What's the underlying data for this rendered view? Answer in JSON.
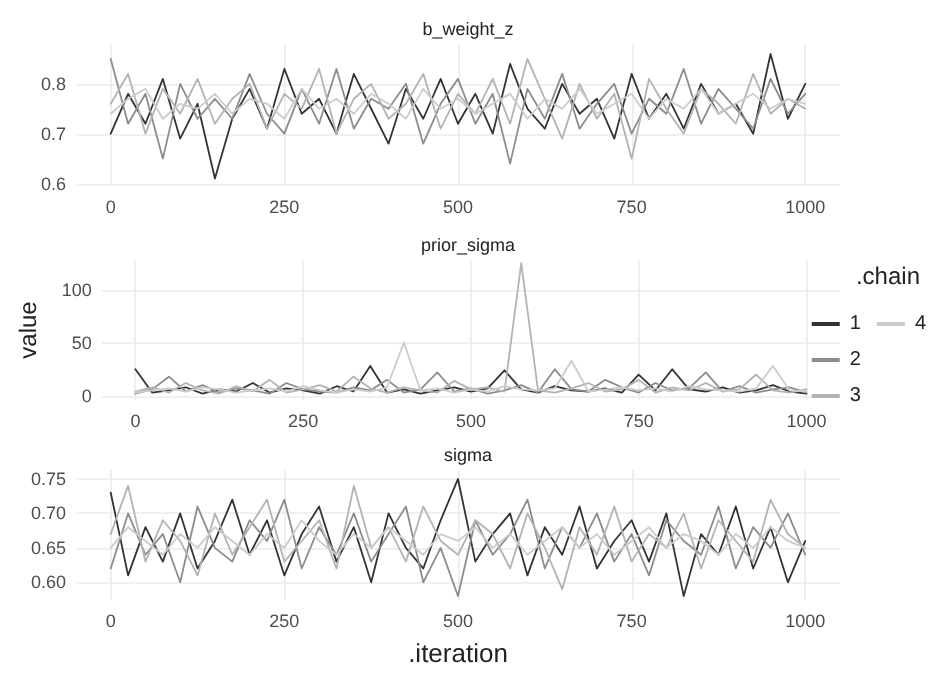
{
  "chart_data": [
    {
      "type": "line",
      "title": "b_weight_z",
      "x": [
        0,
        25,
        50,
        75,
        100,
        125,
        150,
        175,
        200,
        225,
        250,
        275,
        300,
        325,
        350,
        375,
        400,
        425,
        450,
        475,
        500,
        525,
        550,
        575,
        600,
        625,
        650,
        675,
        700,
        725,
        750,
        775,
        800,
        825,
        850,
        875,
        900,
        925,
        950,
        975,
        1000
      ],
      "xlim": [
        -50,
        1050
      ],
      "xticks": [
        0,
        250,
        500,
        750,
        1000
      ],
      "ylim": [
        0.595,
        0.88
      ],
      "yticks": [
        0.6,
        0.7,
        0.8
      ],
      "grid": true,
      "series": [
        {
          "color": "#333333",
          "values": [
            0.7,
            0.78,
            0.72,
            0.81,
            0.69,
            0.76,
            0.61,
            0.73,
            0.79,
            0.71,
            0.83,
            0.74,
            0.77,
            0.7,
            0.82,
            0.75,
            0.68,
            0.79,
            0.73,
            0.81,
            0.72,
            0.78,
            0.7,
            0.84,
            0.75,
            0.71,
            0.8,
            0.74,
            0.77,
            0.69,
            0.82,
            0.73,
            0.78,
            0.71,
            0.8,
            0.74,
            0.76,
            0.7,
            0.86,
            0.73,
            0.8
          ]
        },
        {
          "color": "#8c8c8c",
          "values": [
            0.85,
            0.72,
            0.78,
            0.65,
            0.8,
            0.73,
            0.77,
            0.73,
            0.82,
            0.74,
            0.7,
            0.79,
            0.72,
            0.83,
            0.71,
            0.77,
            0.75,
            0.8,
            0.68,
            0.76,
            0.81,
            0.72,
            0.78,
            0.64,
            0.79,
            0.73,
            0.82,
            0.71,
            0.76,
            0.8,
            0.7,
            0.77,
            0.74,
            0.83,
            0.72,
            0.79,
            0.75,
            0.71,
            0.81,
            0.74,
            0.78
          ]
        },
        {
          "color": "#b3b3b3",
          "values": [
            0.76,
            0.82,
            0.7,
            0.79,
            0.74,
            0.81,
            0.72,
            0.77,
            0.8,
            0.71,
            0.78,
            0.75,
            0.83,
            0.7,
            0.77,
            0.8,
            0.73,
            0.76,
            0.82,
            0.71,
            0.78,
            0.74,
            0.81,
            0.72,
            0.85,
            0.77,
            0.69,
            0.8,
            0.73,
            0.78,
            0.65,
            0.81,
            0.75,
            0.7,
            0.79,
            0.76,
            0.72,
            0.82,
            0.74,
            0.77,
            0.75
          ]
        },
        {
          "color": "#cccccc",
          "values": [
            0.74,
            0.77,
            0.79,
            0.73,
            0.76,
            0.75,
            0.78,
            0.74,
            0.77,
            0.76,
            0.73,
            0.79,
            0.75,
            0.77,
            0.74,
            0.78,
            0.76,
            0.73,
            0.79,
            0.75,
            0.77,
            0.74,
            0.76,
            0.78,
            0.73,
            0.77,
            0.75,
            0.79,
            0.74,
            0.76,
            0.78,
            0.73,
            0.77,
            0.75,
            0.79,
            0.74,
            0.76,
            0.78,
            0.75,
            0.77,
            0.76
          ]
        }
      ]
    },
    {
      "type": "line",
      "title": "prior_sigma",
      "ylabel": "value",
      "legend_title": ".chain",
      "legend": "right",
      "x": [
        0,
        25,
        50,
        75,
        100,
        125,
        150,
        175,
        200,
        225,
        250,
        275,
        300,
        325,
        350,
        375,
        400,
        425,
        450,
        475,
        500,
        525,
        550,
        575,
        600,
        625,
        650,
        675,
        700,
        725,
        750,
        775,
        800,
        825,
        850,
        875,
        900,
        925,
        950,
        975,
        1000
      ],
      "xlim": [
        -50,
        1050
      ],
      "xticks": [
        0,
        250,
        500,
        750,
        1000
      ],
      "ylim": [
        -4,
        128
      ],
      "yticks": [
        0,
        50,
        100
      ],
      "grid": true,
      "series": [
        {
          "name": "1",
          "color": "#333333",
          "values": [
            25,
            3,
            5,
            8,
            2,
            6,
            4,
            12,
            3,
            7,
            5,
            2,
            9,
            4,
            28,
            3,
            6,
            2,
            5,
            8,
            4,
            7,
            24,
            6,
            3,
            9,
            5,
            4,
            7,
            3,
            20,
            5,
            25,
            6,
            4,
            8,
            3,
            5,
            10,
            4,
            2
          ]
        },
        {
          "name": "2",
          "color": "#8c8c8c",
          "values": [
            2,
            6,
            18,
            4,
            10,
            3,
            7,
            5,
            2,
            12,
            6,
            4,
            3,
            8,
            5,
            15,
            3,
            6,
            22,
            4,
            7,
            2,
            5,
            10,
            3,
            25,
            6,
            4,
            15,
            8,
            3,
            12,
            5,
            7,
            22,
            4,
            9,
            3,
            6,
            8,
            3
          ]
        },
        {
          "name": "3",
          "color": "#b3b3b3",
          "values": [
            4,
            8,
            3,
            12,
            5,
            2,
            9,
            4,
            15,
            3,
            6,
            10,
            4,
            18,
            7,
            3,
            8,
            5,
            3,
            14,
            6,
            8,
            4,
            125,
            5,
            3,
            7,
            12,
            4,
            6,
            15,
            3,
            8,
            5,
            12,
            4,
            6,
            20,
            5,
            3,
            6
          ]
        },
        {
          "name": "4",
          "color": "#cccccc",
          "values": [
            3,
            5,
            7,
            4,
            8,
            6,
            3,
            5,
            7,
            4,
            9,
            5,
            3,
            6,
            4,
            8,
            50,
            5,
            7,
            3,
            6,
            4,
            9,
            6,
            5,
            7,
            33,
            4,
            6,
            8,
            5,
            7,
            4,
            9,
            6,
            5,
            4,
            7,
            28,
            5,
            4
          ]
        }
      ]
    },
    {
      "type": "line",
      "title": "sigma",
      "xlabel": ".iteration",
      "x": [
        0,
        25,
        50,
        75,
        100,
        125,
        150,
        175,
        200,
        225,
        250,
        275,
        300,
        325,
        350,
        375,
        400,
        425,
        450,
        475,
        500,
        525,
        550,
        575,
        600,
        625,
        650,
        675,
        700,
        725,
        750,
        775,
        800,
        825,
        850,
        875,
        900,
        925,
        950,
        975,
        1000
      ],
      "xlim": [
        -50,
        1050
      ],
      "xticks": [
        0,
        250,
        500,
        750,
        1000
      ],
      "ylim": [
        0.574,
        0.763
      ],
      "yticks": [
        {
          "value": 0.6,
          "label": "0.60"
        },
        {
          "value": 0.65,
          "label": "0.65"
        },
        {
          "value": 0.7,
          "label": "0.70"
        },
        {
          "value": 0.75,
          "label": "0.75"
        }
      ],
      "grid": true,
      "series": [
        {
          "color": "#333333",
          "values": [
            0.73,
            0.61,
            0.68,
            0.63,
            0.7,
            0.62,
            0.66,
            0.72,
            0.64,
            0.69,
            0.61,
            0.67,
            0.71,
            0.63,
            0.68,
            0.6,
            0.7,
            0.65,
            0.62,
            0.69,
            0.75,
            0.63,
            0.67,
            0.7,
            0.61,
            0.68,
            0.64,
            0.71,
            0.62,
            0.66,
            0.69,
            0.63,
            0.7,
            0.58,
            0.67,
            0.64,
            0.71,
            0.62,
            0.68,
            0.6,
            0.66
          ]
        },
        {
          "color": "#8c8c8c",
          "values": [
            0.62,
            0.7,
            0.64,
            0.67,
            0.6,
            0.71,
            0.65,
            0.63,
            0.69,
            0.66,
            0.72,
            0.62,
            0.68,
            0.64,
            0.7,
            0.63,
            0.67,
            0.71,
            0.6,
            0.65,
            0.58,
            0.69,
            0.64,
            0.67,
            0.72,
            0.62,
            0.68,
            0.65,
            0.7,
            0.63,
            0.67,
            0.61,
            0.69,
            0.66,
            0.64,
            0.71,
            0.62,
            0.68,
            0.65,
            0.7,
            0.64
          ]
        },
        {
          "color": "#b3b3b3",
          "values": [
            0.67,
            0.74,
            0.63,
            0.69,
            0.66,
            0.61,
            0.7,
            0.64,
            0.68,
            0.72,
            0.63,
            0.66,
            0.69,
            0.62,
            0.74,
            0.65,
            0.68,
            0.63,
            0.71,
            0.66,
            0.64,
            0.69,
            0.67,
            0.62,
            0.7,
            0.65,
            0.59,
            0.68,
            0.64,
            0.71,
            0.63,
            0.67,
            0.65,
            0.7,
            0.62,
            0.69,
            0.66,
            0.63,
            0.72,
            0.67,
            0.65
          ]
        },
        {
          "color": "#cccccc",
          "values": [
            0.65,
            0.68,
            0.66,
            0.64,
            0.67,
            0.65,
            0.68,
            0.66,
            0.64,
            0.67,
            0.65,
            0.69,
            0.66,
            0.64,
            0.67,
            0.65,
            0.68,
            0.66,
            0.64,
            0.67,
            0.66,
            0.68,
            0.65,
            0.67,
            0.64,
            0.66,
            0.68,
            0.65,
            0.67,
            0.64,
            0.66,
            0.68,
            0.65,
            0.67,
            0.66,
            0.64,
            0.67,
            0.65,
            0.68,
            0.66,
            0.65
          ]
        }
      ]
    }
  ]
}
